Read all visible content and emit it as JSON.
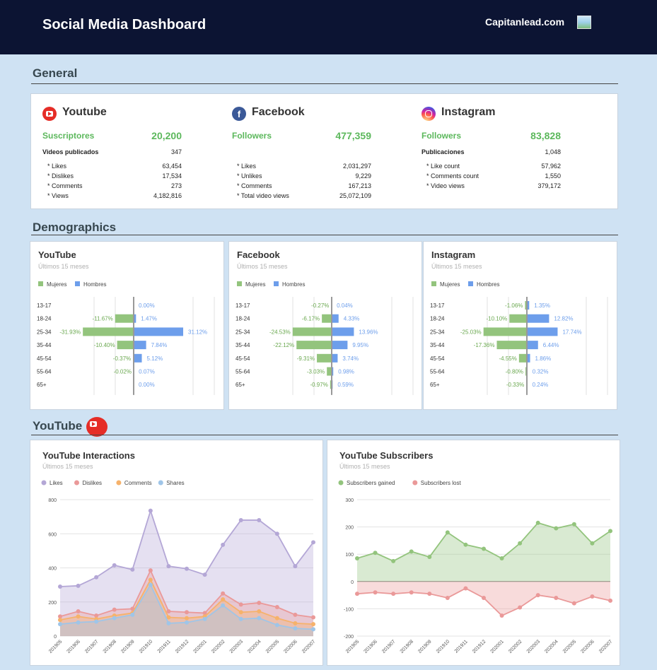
{
  "header": {
    "title": "Social Media Dashboard",
    "brand": "Capitanlead.com"
  },
  "sections": {
    "general": "General",
    "demographics": "Demographics",
    "youtube": "YouTube"
  },
  "general": {
    "youtube": {
      "name": "Youtube",
      "kpi_label": "Suscriptores",
      "kpi_value": "20,200",
      "sub_label": "Videos publicados",
      "sub_value": "347",
      "rows": [
        {
          "label": "* Likes",
          "value": "63,454"
        },
        {
          "label": "* Dislikes",
          "value": "17,534"
        },
        {
          "label": "* Comments",
          "value": "273"
        },
        {
          "label": "* Views",
          "value": "4,182,816"
        }
      ]
    },
    "facebook": {
      "name": "Facebook",
      "kpi_label": "Followers",
      "kpi_value": "477,359",
      "rows": [
        {
          "label": "* Likes",
          "value": "2,031,297"
        },
        {
          "label": "* Unlikes",
          "value": "9,229"
        },
        {
          "label": "* Comments",
          "value": "167,213"
        },
        {
          "label": "* Total video views",
          "value": "25,072,109"
        }
      ]
    },
    "instagram": {
      "name": "Instagram",
      "kpi_label": "Followers",
      "kpi_value": "83,828",
      "sub_label": "Publicaciones",
      "sub_value": "1,048",
      "rows": [
        {
          "label": "* Like count",
          "value": "57,962"
        },
        {
          "label": "* Comments count",
          "value": "1,550"
        },
        {
          "label": "* Video views",
          "value": "379,172"
        }
      ]
    }
  },
  "chart_data": [
    {
      "type": "bar",
      "title": "YouTube",
      "subtitle": "Últimos 15 meses",
      "categories": [
        "13-17",
        "18-24",
        "25-34",
        "35-44",
        "45-54",
        "55-64",
        "65+"
      ],
      "series": [
        {
          "name": "Mujeres",
          "values": [
            0,
            -11.67,
            -31.93,
            -10.4,
            -0.37,
            -0.02,
            0
          ],
          "labels": [
            "",
            "-11.67%",
            "-31.93%",
            "-10.40%",
            "-0.37%",
            "-0.02%",
            ""
          ]
        },
        {
          "name": "Hombres",
          "values": [
            0,
            1.47,
            31.12,
            7.84,
            5.12,
            0.07,
            0
          ],
          "labels": [
            "0.00%",
            "1.47%",
            "31.12%",
            "7.84%",
            "5.12%",
            "0.07%",
            "0.00%"
          ]
        }
      ],
      "colors": [
        "#93c47d",
        "#6d9eeb"
      ]
    },
    {
      "type": "bar",
      "title": "Facebook",
      "subtitle": "Últimos 15 meses",
      "categories": [
        "13-17",
        "18-24",
        "25-34",
        "35-44",
        "45-54",
        "55-64",
        "65+"
      ],
      "series": [
        {
          "name": "Mujeres",
          "values": [
            -0.27,
            -6.17,
            -24.53,
            -22.12,
            -9.31,
            -3.03,
            -0.97
          ],
          "labels": [
            "-0.27%",
            "-6.17%",
            "-24.53%",
            "-22.12%",
            "-9.31%",
            "-3.03%",
            "-0.97%"
          ]
        },
        {
          "name": "Hombres",
          "values": [
            0.04,
            4.33,
            13.96,
            9.95,
            3.74,
            0.98,
            0.59
          ],
          "labels": [
            "0.04%",
            "4.33%",
            "13.96%",
            "9.95%",
            "3.74%",
            "0.98%",
            "0.59%"
          ]
        }
      ],
      "colors": [
        "#93c47d",
        "#6d9eeb"
      ]
    },
    {
      "type": "bar",
      "title": "Instagram",
      "subtitle": "Últimos 15 meses",
      "categories": [
        "13-17",
        "18-24",
        "25-34",
        "35-44",
        "45-54",
        "55-64",
        "65+"
      ],
      "series": [
        {
          "name": "Mujeres",
          "values": [
            -1.06,
            -10.1,
            -25.03,
            -17.36,
            -4.55,
            -0.8,
            -0.33
          ],
          "labels": [
            "-1.06%",
            "-10.10%",
            "-25.03%",
            "-17.36%",
            "-4.55%",
            "-0.80%",
            "-0.33%"
          ]
        },
        {
          "name": "Hombres",
          "values": [
            1.35,
            12.82,
            17.74,
            6.44,
            1.86,
            0.32,
            0.24
          ],
          "labels": [
            "1.35%",
            "12.82%",
            "17.74%",
            "6.44%",
            "1.86%",
            "0.32%",
            "0.24%"
          ]
        }
      ],
      "colors": [
        "#93c47d",
        "#6d9eeb"
      ]
    },
    {
      "type": "area",
      "title": "YouTube Interactions",
      "subtitle": "Últimos 15 meses",
      "x": [
        "201905",
        "201906",
        "201907",
        "201908",
        "201909",
        "201910",
        "201911",
        "201912",
        "202001",
        "202002",
        "202003",
        "202004",
        "202005",
        "202006",
        "202007"
      ],
      "yticks": [
        "0",
        "200",
        "400",
        "600",
        "800"
      ],
      "ylim": [
        0,
        800
      ],
      "series": [
        {
          "name": "Likes",
          "color": "#b4a7d6",
          "values": [
            290,
            295,
            345,
            415,
            390,
            735,
            410,
            395,
            360,
            535,
            680,
            680,
            600,
            410,
            550
          ]
        },
        {
          "name": "Dislikes",
          "color": "#ea9999",
          "values": [
            115,
            145,
            120,
            155,
            160,
            385,
            145,
            140,
            135,
            250,
            185,
            195,
            170,
            125,
            110
          ]
        },
        {
          "name": "Comments",
          "color": "#f6b26b",
          "values": [
            95,
            115,
            100,
            120,
            135,
            330,
            110,
            105,
            115,
            215,
            140,
            145,
            105,
            75,
            70
          ]
        },
        {
          "name": "Shares",
          "color": "#9fc5e8",
          "values": [
            70,
            80,
            85,
            105,
            125,
            300,
            75,
            80,
            100,
            180,
            100,
            105,
            65,
            45,
            40
          ]
        }
      ]
    },
    {
      "type": "area",
      "title": "YouTube Subscribers",
      "subtitle": "Últimos 15 meses",
      "x": [
        "201905",
        "201906",
        "201907",
        "201908",
        "201909",
        "201910",
        "201911",
        "201912",
        "202001",
        "202002",
        "202003",
        "202004",
        "202005",
        "202006",
        "202007"
      ],
      "yticks": [
        "-200",
        "-100",
        "0",
        "100",
        "200",
        "300"
      ],
      "ylim": [
        -200,
        300
      ],
      "series": [
        {
          "name": "Subscribers gained",
          "color": "#93c47d",
          "values": [
            85,
            105,
            75,
            110,
            90,
            180,
            135,
            120,
            85,
            140,
            215,
            195,
            210,
            140,
            185
          ]
        },
        {
          "name": "Subscribers lost",
          "color": "#ea9999",
          "values": [
            -45,
            -40,
            -45,
            -40,
            -45,
            -60,
            -25,
            -60,
            -125,
            -95,
            -50,
            -60,
            -80,
            -55,
            -70
          ]
        }
      ]
    }
  ]
}
